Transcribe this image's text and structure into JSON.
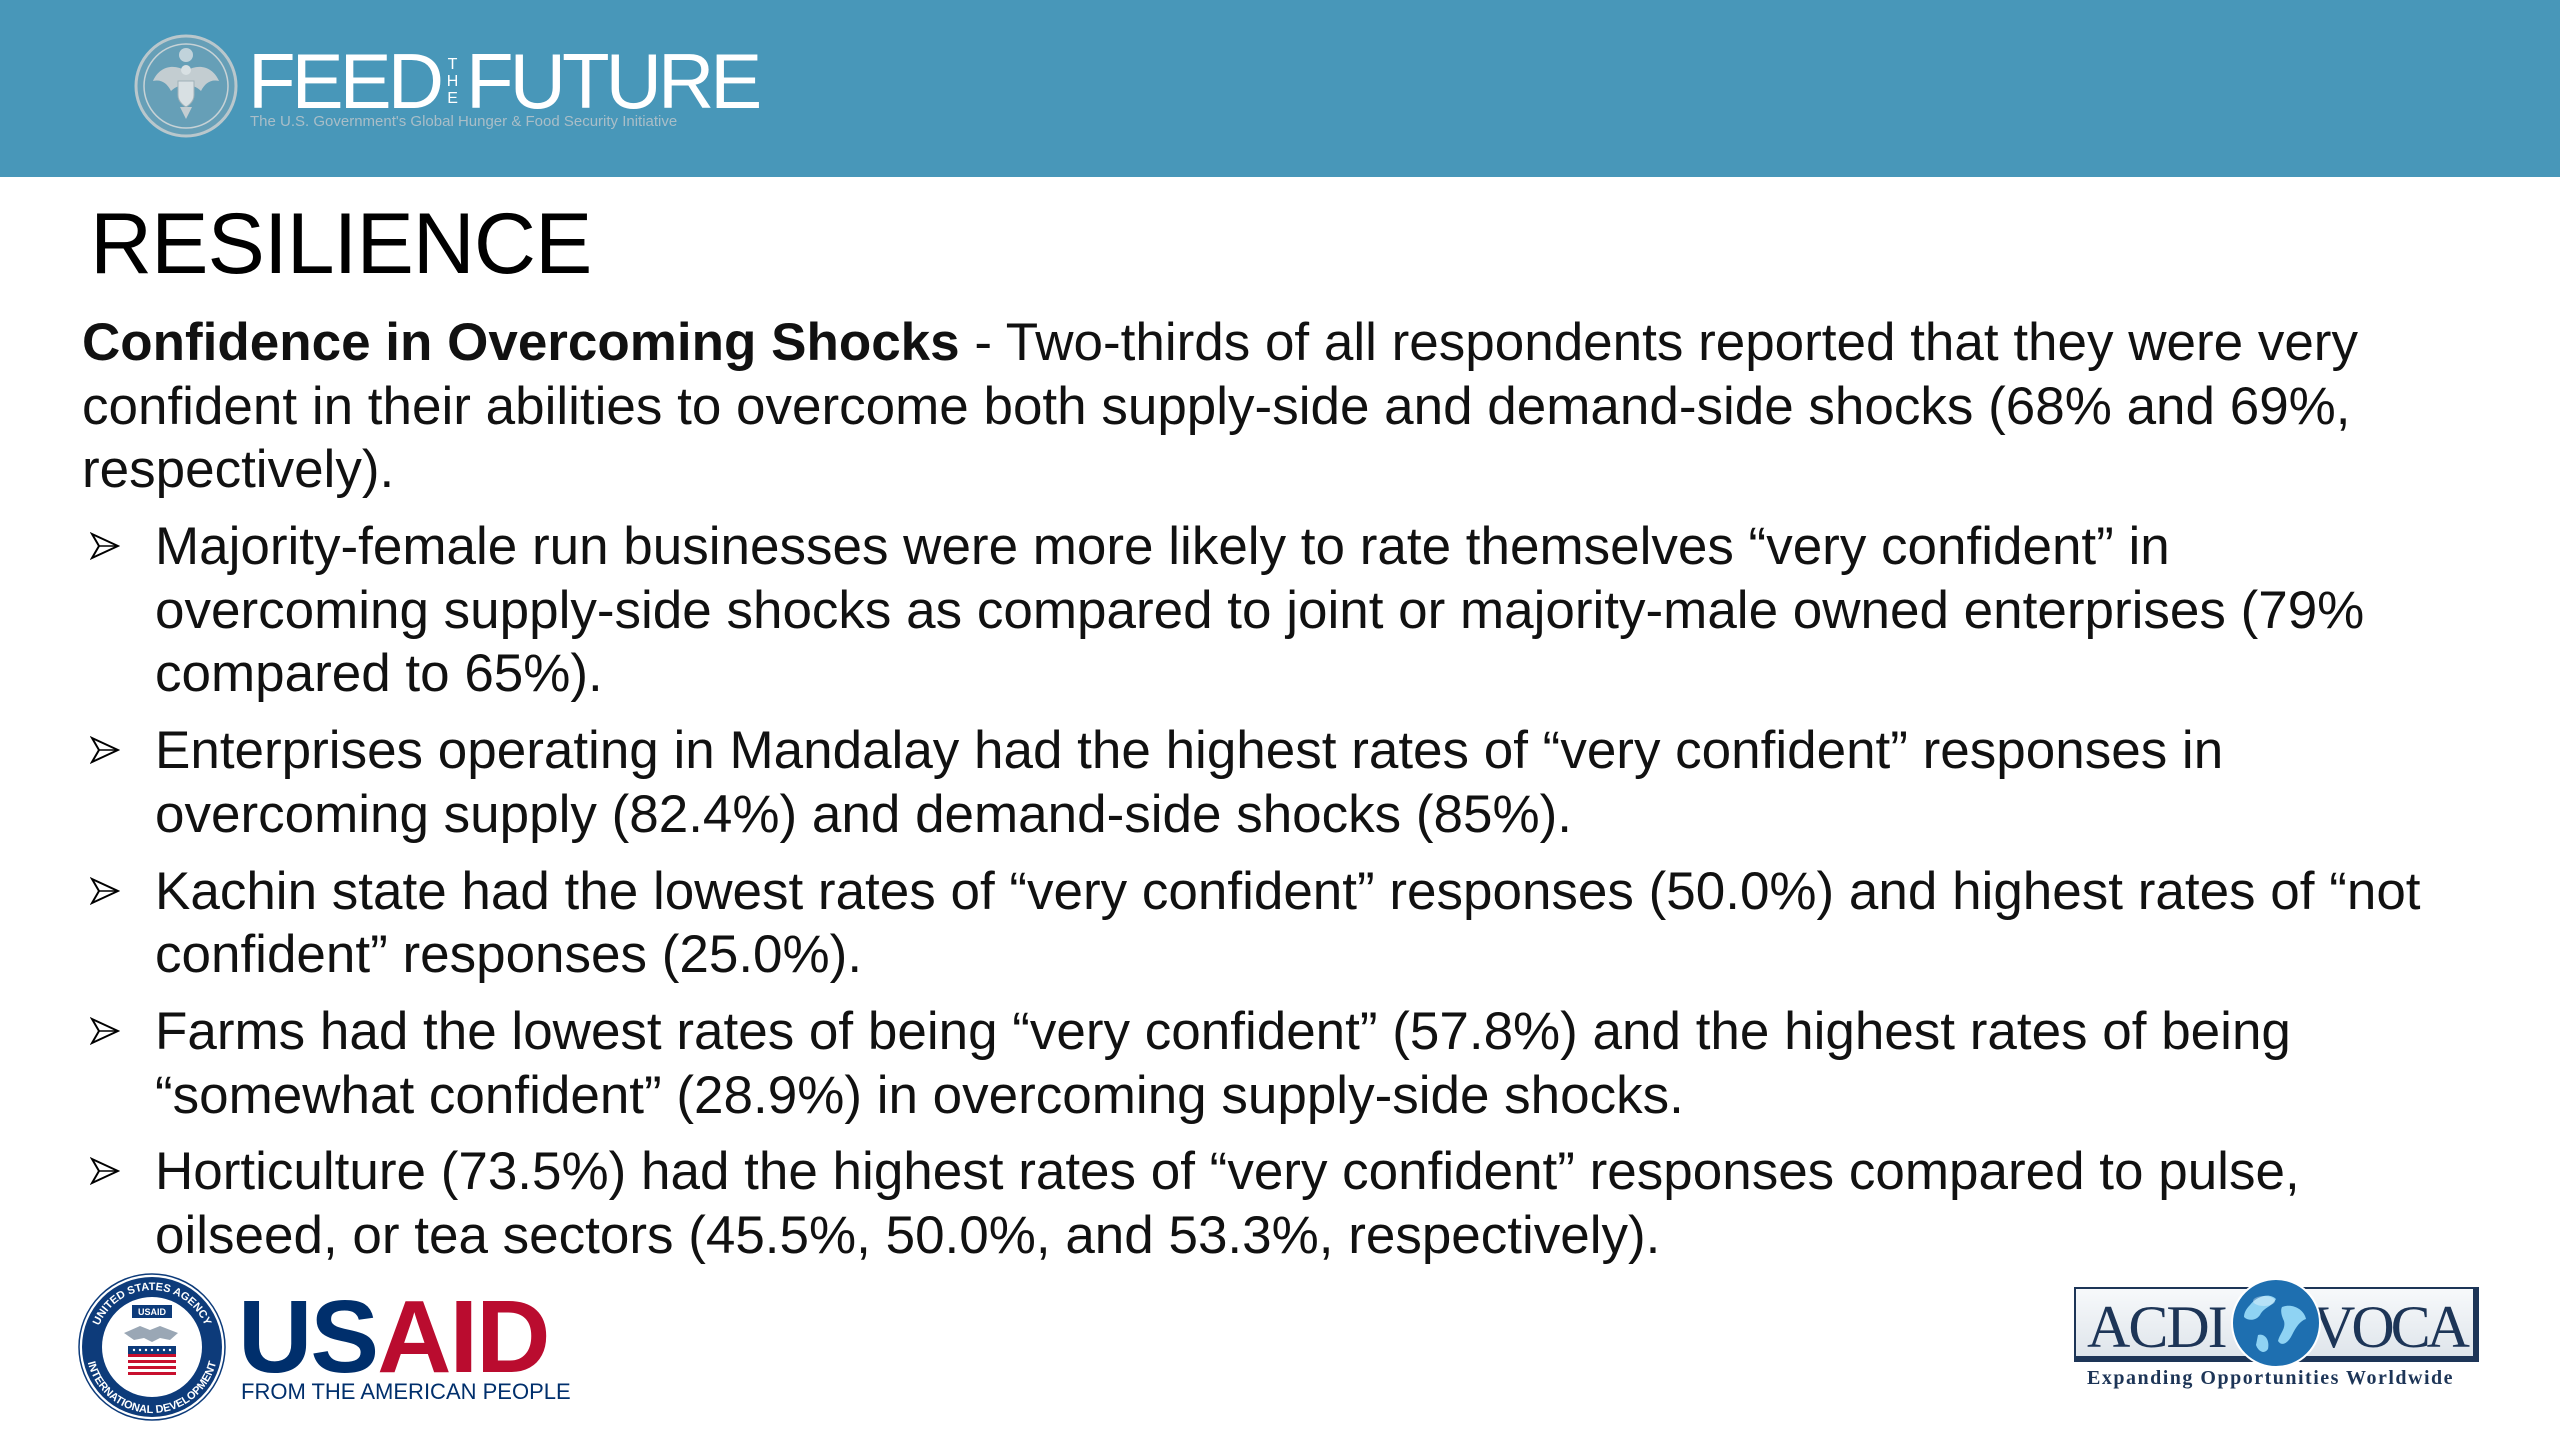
{
  "header": {
    "logo_icon": "great-seal-icon",
    "brand": {
      "word1": "FEED",
      "middle": "THE",
      "word2": "FUTURE"
    },
    "tagline": "The U.S. Government's Global Hunger & Food Security Initiative"
  },
  "slide": {
    "title": "RESILIENCE",
    "intro": {
      "lead": "Confidence in Overcoming Shocks",
      "lines": [
        " - Two-thirds of all respondents reported that they were very",
        "confident in their abilities to overcome both supply-side and demand-side shocks (68% and 69%,",
        "respectively)."
      ]
    },
    "bullet_icon": "bullet-arrow-icon",
    "bullets": [
      {
        "lines": [
          "Majority-female run businesses were more likely to rate themselves “very confident” in",
          "overcoming supply-side shocks as compared to joint or majority-male owned enterprises (79%",
          "compared to 65%)."
        ]
      },
      {
        "lines": [
          "Enterprises operating in Mandalay had the highest rates of “very confident” responses in",
          "overcoming supply (82.4%) and demand-side shocks (85%)."
        ]
      },
      {
        "lines": [
          "Kachin state had the lowest rates of “very confident” responses (50.0%) and highest rates of “not",
          "confident” responses (25.0%)."
        ]
      },
      {
        "lines": [
          "Farms had the lowest rates of being “very confident” (57.8%) and the highest rates of being",
          "“somewhat confident” (28.9%) in overcoming supply-side shocks."
        ]
      },
      {
        "lines": [
          "Horticulture (73.5%) had the highest rates of “very confident” responses compared to pulse,",
          "oilseed, or tea sectors (45.5%, 50.0%, and 53.3%, respectively)."
        ]
      }
    ]
  },
  "footer": {
    "usaid": {
      "seal_icon": "usaid-seal-logo",
      "seal_top": "UNITED STATES AGENCY",
      "seal_bottom": "INTERNATIONAL DEVELOPMENT",
      "seal_label": "USAID",
      "wordmark_us": "US",
      "wordmark_aid": "AID",
      "tagline": "FROM THE AMERICAN PEOPLE"
    },
    "acdi_voca": {
      "left": "ACDI",
      "right": "VOCA",
      "globe_icon": "globe-icon",
      "tagline": "Expanding Opportunities Worldwide"
    }
  },
  "colors": {
    "header_background": "#4897b9",
    "usaid_blue": "#002f6c",
    "usaid_red": "#ba0c2f",
    "acdi_voca_navy": "#1d3557"
  }
}
